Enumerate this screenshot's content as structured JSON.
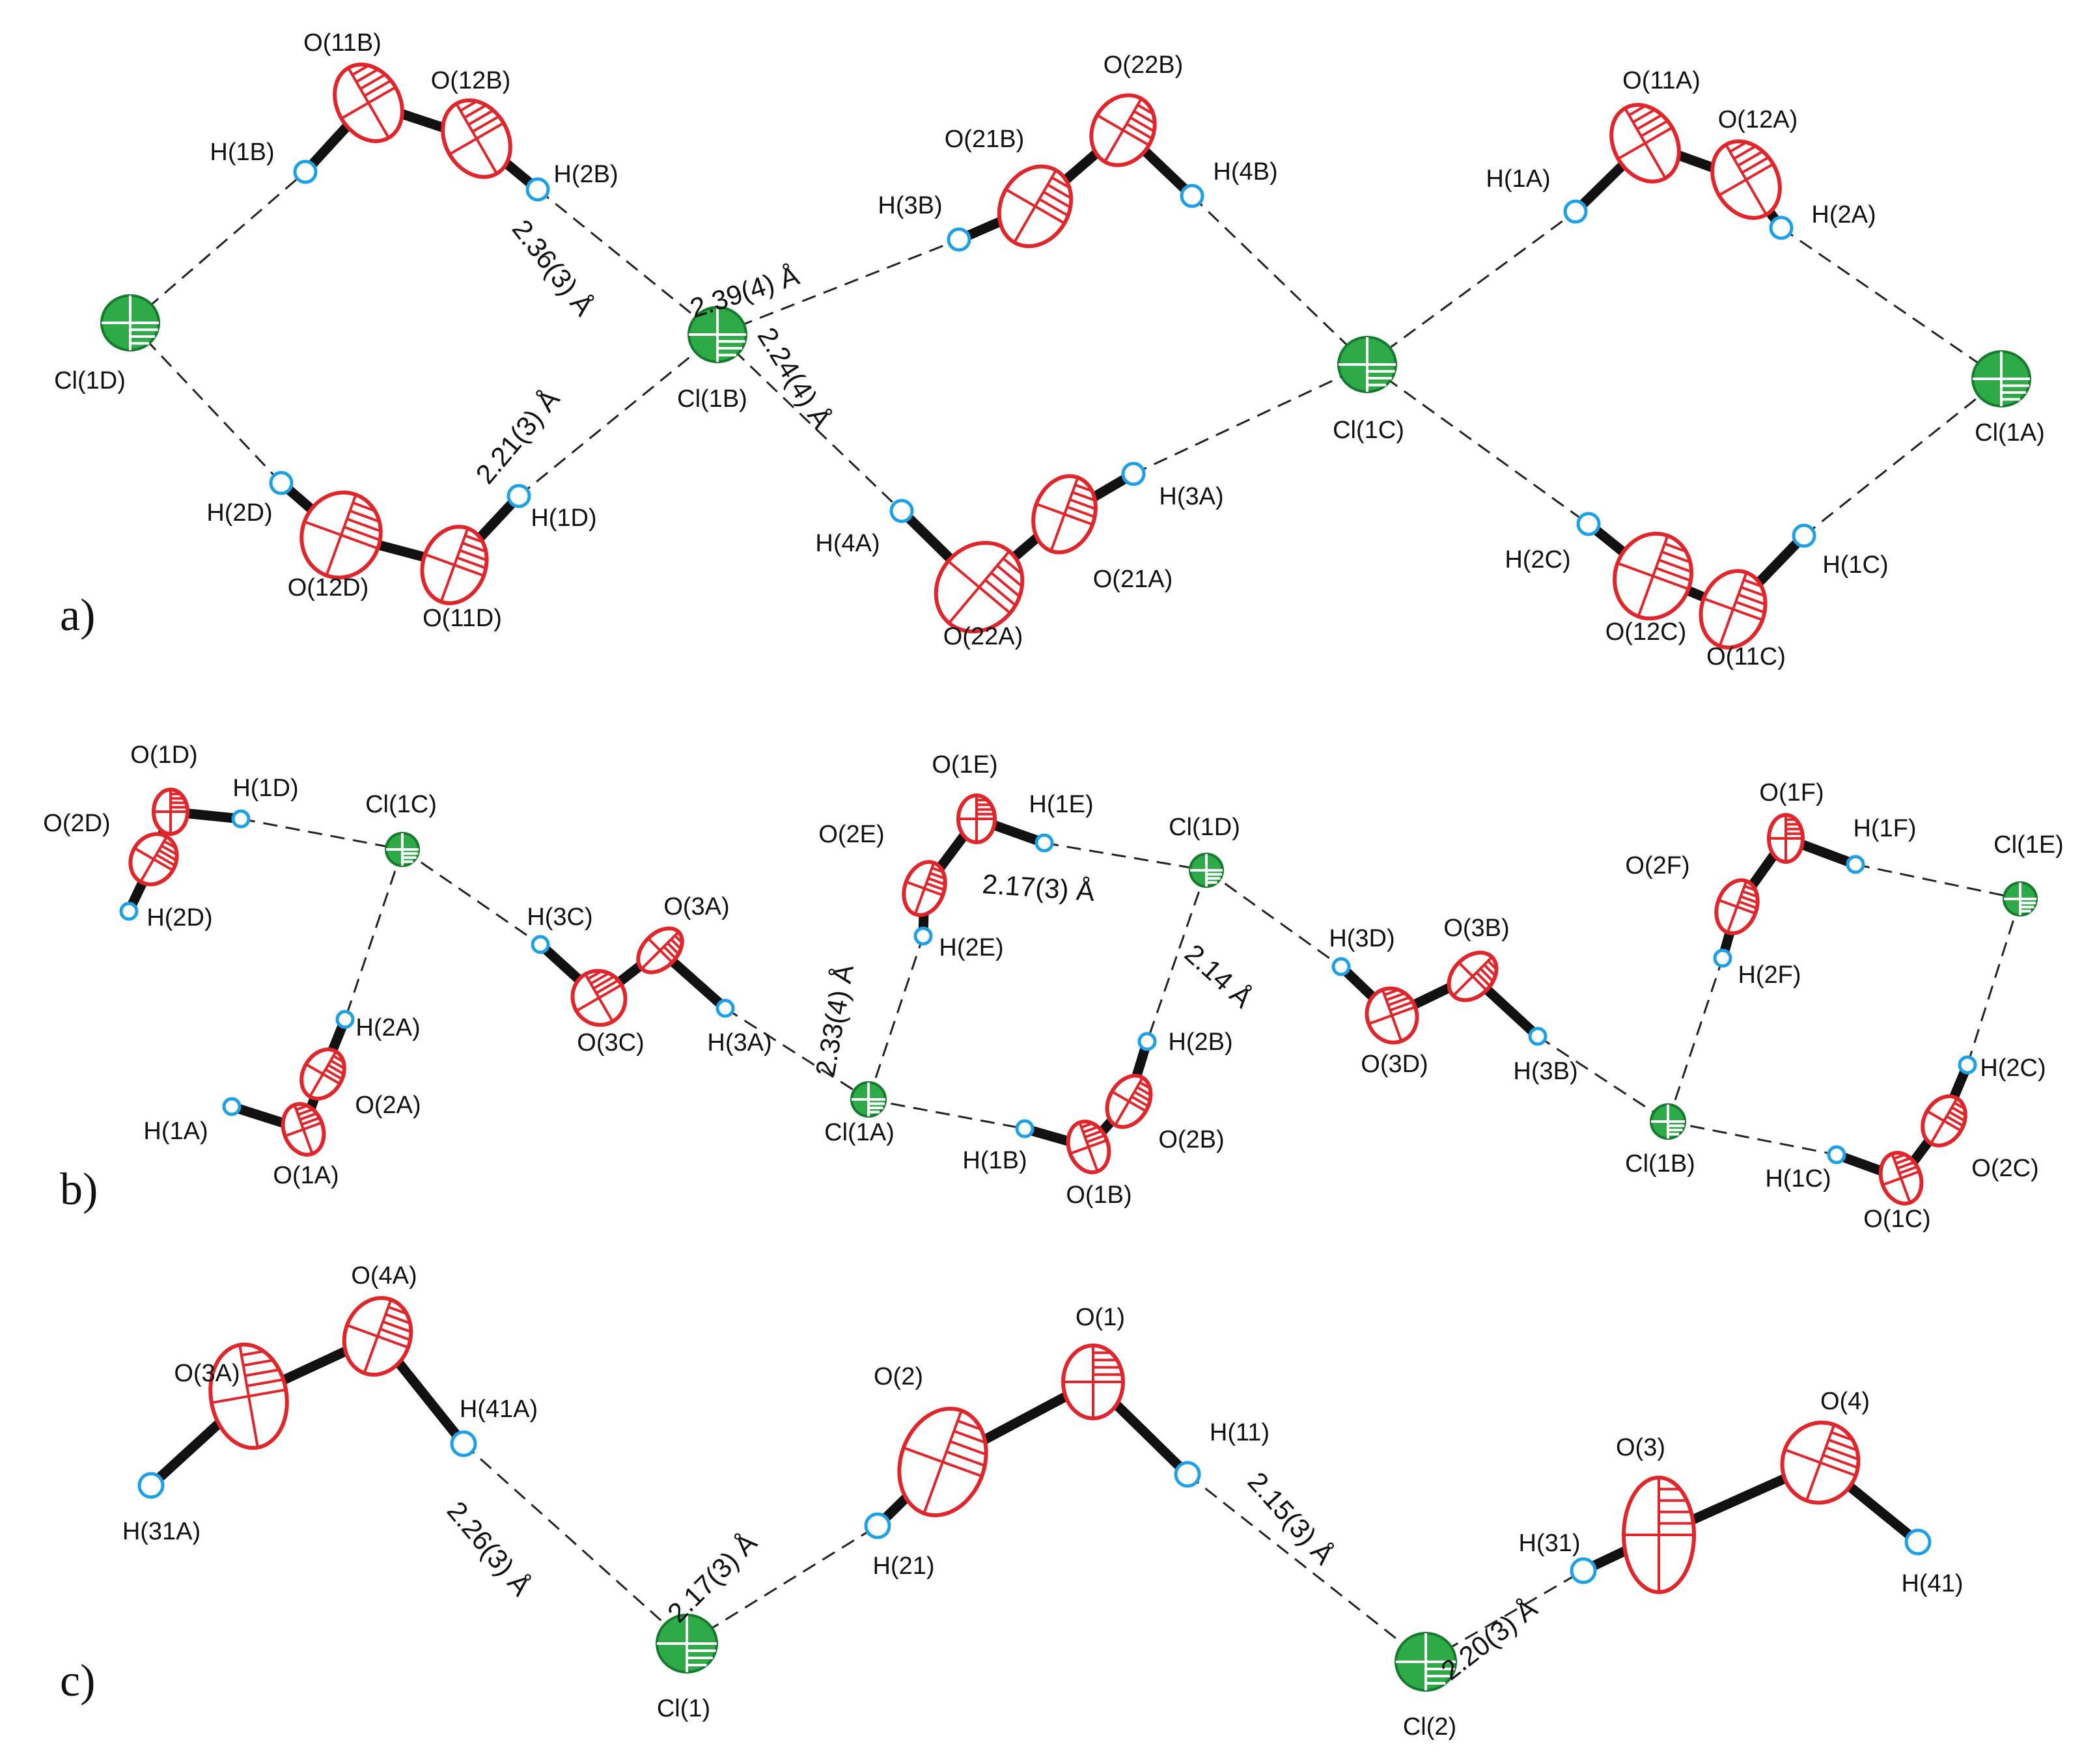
{
  "figure": {
    "panels": [
      {
        "id": "a",
        "label": "a)",
        "atoms": [
          {
            "name": "Cl(1D)",
            "type": "Cl"
          },
          {
            "name": "H(1B)",
            "type": "H"
          },
          {
            "name": "O(11B)",
            "type": "O"
          },
          {
            "name": "O(12B)",
            "type": "O"
          },
          {
            "name": "H(2B)",
            "type": "H"
          },
          {
            "name": "H(2D)",
            "type": "H"
          },
          {
            "name": "O(12D)",
            "type": "O"
          },
          {
            "name": "O(11D)",
            "type": "O"
          },
          {
            "name": "H(1D)",
            "type": "H"
          },
          {
            "name": "Cl(1B)",
            "type": "Cl"
          },
          {
            "name": "H(3B)",
            "type": "H"
          },
          {
            "name": "O(21B)",
            "type": "O"
          },
          {
            "name": "O(22B)",
            "type": "O"
          },
          {
            "name": "H(4B)",
            "type": "H"
          },
          {
            "name": "H(4A)",
            "type": "H"
          },
          {
            "name": "O(22A)",
            "type": "O"
          },
          {
            "name": "O(21A)",
            "type": "O"
          },
          {
            "name": "H(3A)",
            "type": "H"
          },
          {
            "name": "Cl(1C)",
            "type": "Cl"
          },
          {
            "name": "H(1A)",
            "type": "H"
          },
          {
            "name": "O(11A)",
            "type": "O"
          },
          {
            "name": "O(12A)",
            "type": "O"
          },
          {
            "name": "H(2A)",
            "type": "H"
          },
          {
            "name": "Cl(1A)",
            "type": "Cl"
          },
          {
            "name": "H(2C)",
            "type": "H"
          },
          {
            "name": "O(12C)",
            "type": "O"
          },
          {
            "name": "O(11C)",
            "type": "O"
          },
          {
            "name": "H(1C)",
            "type": "H"
          }
        ],
        "distances": [
          "2.36(3) Å",
          "2.39(4) Å",
          "2.21(3) Å",
          "2.24(4) Å"
        ]
      },
      {
        "id": "b",
        "label": "b)",
        "atoms": [
          {
            "name": "O(1D)",
            "type": "O"
          },
          {
            "name": "O(2D)",
            "type": "O"
          },
          {
            "name": "H(1D)",
            "type": "H"
          },
          {
            "name": "H(2D)",
            "type": "H"
          },
          {
            "name": "Cl(1C)",
            "type": "Cl"
          },
          {
            "name": "H(2A)",
            "type": "H"
          },
          {
            "name": "O(2A)",
            "type": "O"
          },
          {
            "name": "H(1A)",
            "type": "H"
          },
          {
            "name": "O(1A)",
            "type": "O"
          },
          {
            "name": "H(3C)",
            "type": "H"
          },
          {
            "name": "O(3A)",
            "type": "O"
          },
          {
            "name": "O(3C)",
            "type": "O"
          },
          {
            "name": "H(3A)",
            "type": "H"
          },
          {
            "name": "Cl(1A)",
            "type": "Cl"
          },
          {
            "name": "O(1E)",
            "type": "O"
          },
          {
            "name": "H(1E)",
            "type": "H"
          },
          {
            "name": "O(2E)",
            "type": "O"
          },
          {
            "name": "H(2E)",
            "type": "H"
          },
          {
            "name": "Cl(1D)",
            "type": "Cl"
          },
          {
            "name": "H(2B)",
            "type": "H"
          },
          {
            "name": "O(2B)",
            "type": "O"
          },
          {
            "name": "H(1B)",
            "type": "H"
          },
          {
            "name": "O(1B)",
            "type": "O"
          },
          {
            "name": "H(3D)",
            "type": "H"
          },
          {
            "name": "O(3B)",
            "type": "O"
          },
          {
            "name": "O(3D)",
            "type": "O"
          },
          {
            "name": "H(3B)",
            "type": "H"
          },
          {
            "name": "O(1F)",
            "type": "O"
          },
          {
            "name": "H(1F)",
            "type": "H"
          },
          {
            "name": "O(2F)",
            "type": "O"
          },
          {
            "name": "H(2F)",
            "type": "H"
          },
          {
            "name": "Cl(1E)",
            "type": "Cl"
          },
          {
            "name": "Cl(1B)",
            "type": "Cl"
          },
          {
            "name": "H(2C)",
            "type": "H"
          },
          {
            "name": "O(2C)",
            "type": "O"
          },
          {
            "name": "H(1C)",
            "type": "H"
          },
          {
            "name": "O(1C)",
            "type": "O"
          }
        ],
        "distances": [
          "2.17(3) Å",
          "2.33(4) Å",
          "2.14 Å"
        ]
      },
      {
        "id": "c",
        "label": "c)",
        "atoms": [
          {
            "name": "O(3A)",
            "type": "O"
          },
          {
            "name": "O(4A)",
            "type": "O"
          },
          {
            "name": "H(41A)",
            "type": "H"
          },
          {
            "name": "H(31A)",
            "type": "H"
          },
          {
            "name": "Cl(1)",
            "type": "Cl"
          },
          {
            "name": "O(2)",
            "type": "O"
          },
          {
            "name": "O(1)",
            "type": "O"
          },
          {
            "name": "H(11)",
            "type": "H"
          },
          {
            "name": "H(21)",
            "type": "H"
          },
          {
            "name": "Cl(2)",
            "type": "Cl"
          },
          {
            "name": "O(3)",
            "type": "O"
          },
          {
            "name": "O(4)",
            "type": "O"
          },
          {
            "name": "H(31)",
            "type": "H"
          },
          {
            "name": "H(41)",
            "type": "H"
          }
        ],
        "distances": [
          "2.26(3) Å",
          "2.17(3) Å",
          "2.15(3) Å",
          "2.20(3) Å"
        ]
      }
    ]
  },
  "colors": {
    "oxygen": "#e0252b",
    "hydrogen": "#1ea0e6",
    "chlorine": "#2faa49",
    "bond": "#111111"
  }
}
